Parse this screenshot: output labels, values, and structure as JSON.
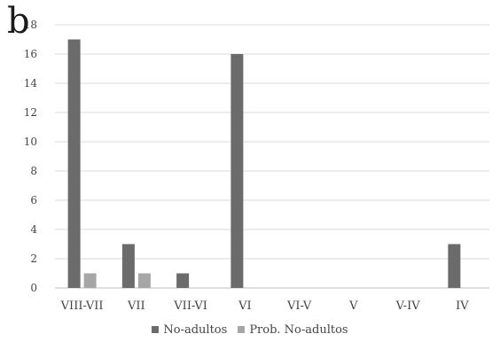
{
  "panel_label": "b",
  "colors": {
    "background": "#ffffff",
    "grid": "#d9d9d9",
    "axis": "#bfbfbf",
    "text": "#444444"
  },
  "chart_data": {
    "type": "bar",
    "categories": [
      "VIII-VII",
      "VII",
      "VII-VI",
      "VI",
      "VI-V",
      "V",
      "V-IV",
      "IV"
    ],
    "series": [
      {
        "name": "No-adultos",
        "color": "#6b6b6b",
        "values": [
          17,
          3,
          1,
          16,
          0,
          0,
          0,
          3
        ]
      },
      {
        "name": "Prob. No-adultos",
        "color": "#a6a6a6",
        "values": [
          1,
          1,
          0,
          0,
          0,
          0,
          0,
          0
        ]
      }
    ],
    "yticks": [
      "0",
      "2",
      "4",
      "6",
      "8",
      "10",
      "12",
      "14",
      "16",
      "18"
    ],
    "ylim": [
      0,
      18
    ],
    "grid": true,
    "legend_position": "bottom"
  }
}
